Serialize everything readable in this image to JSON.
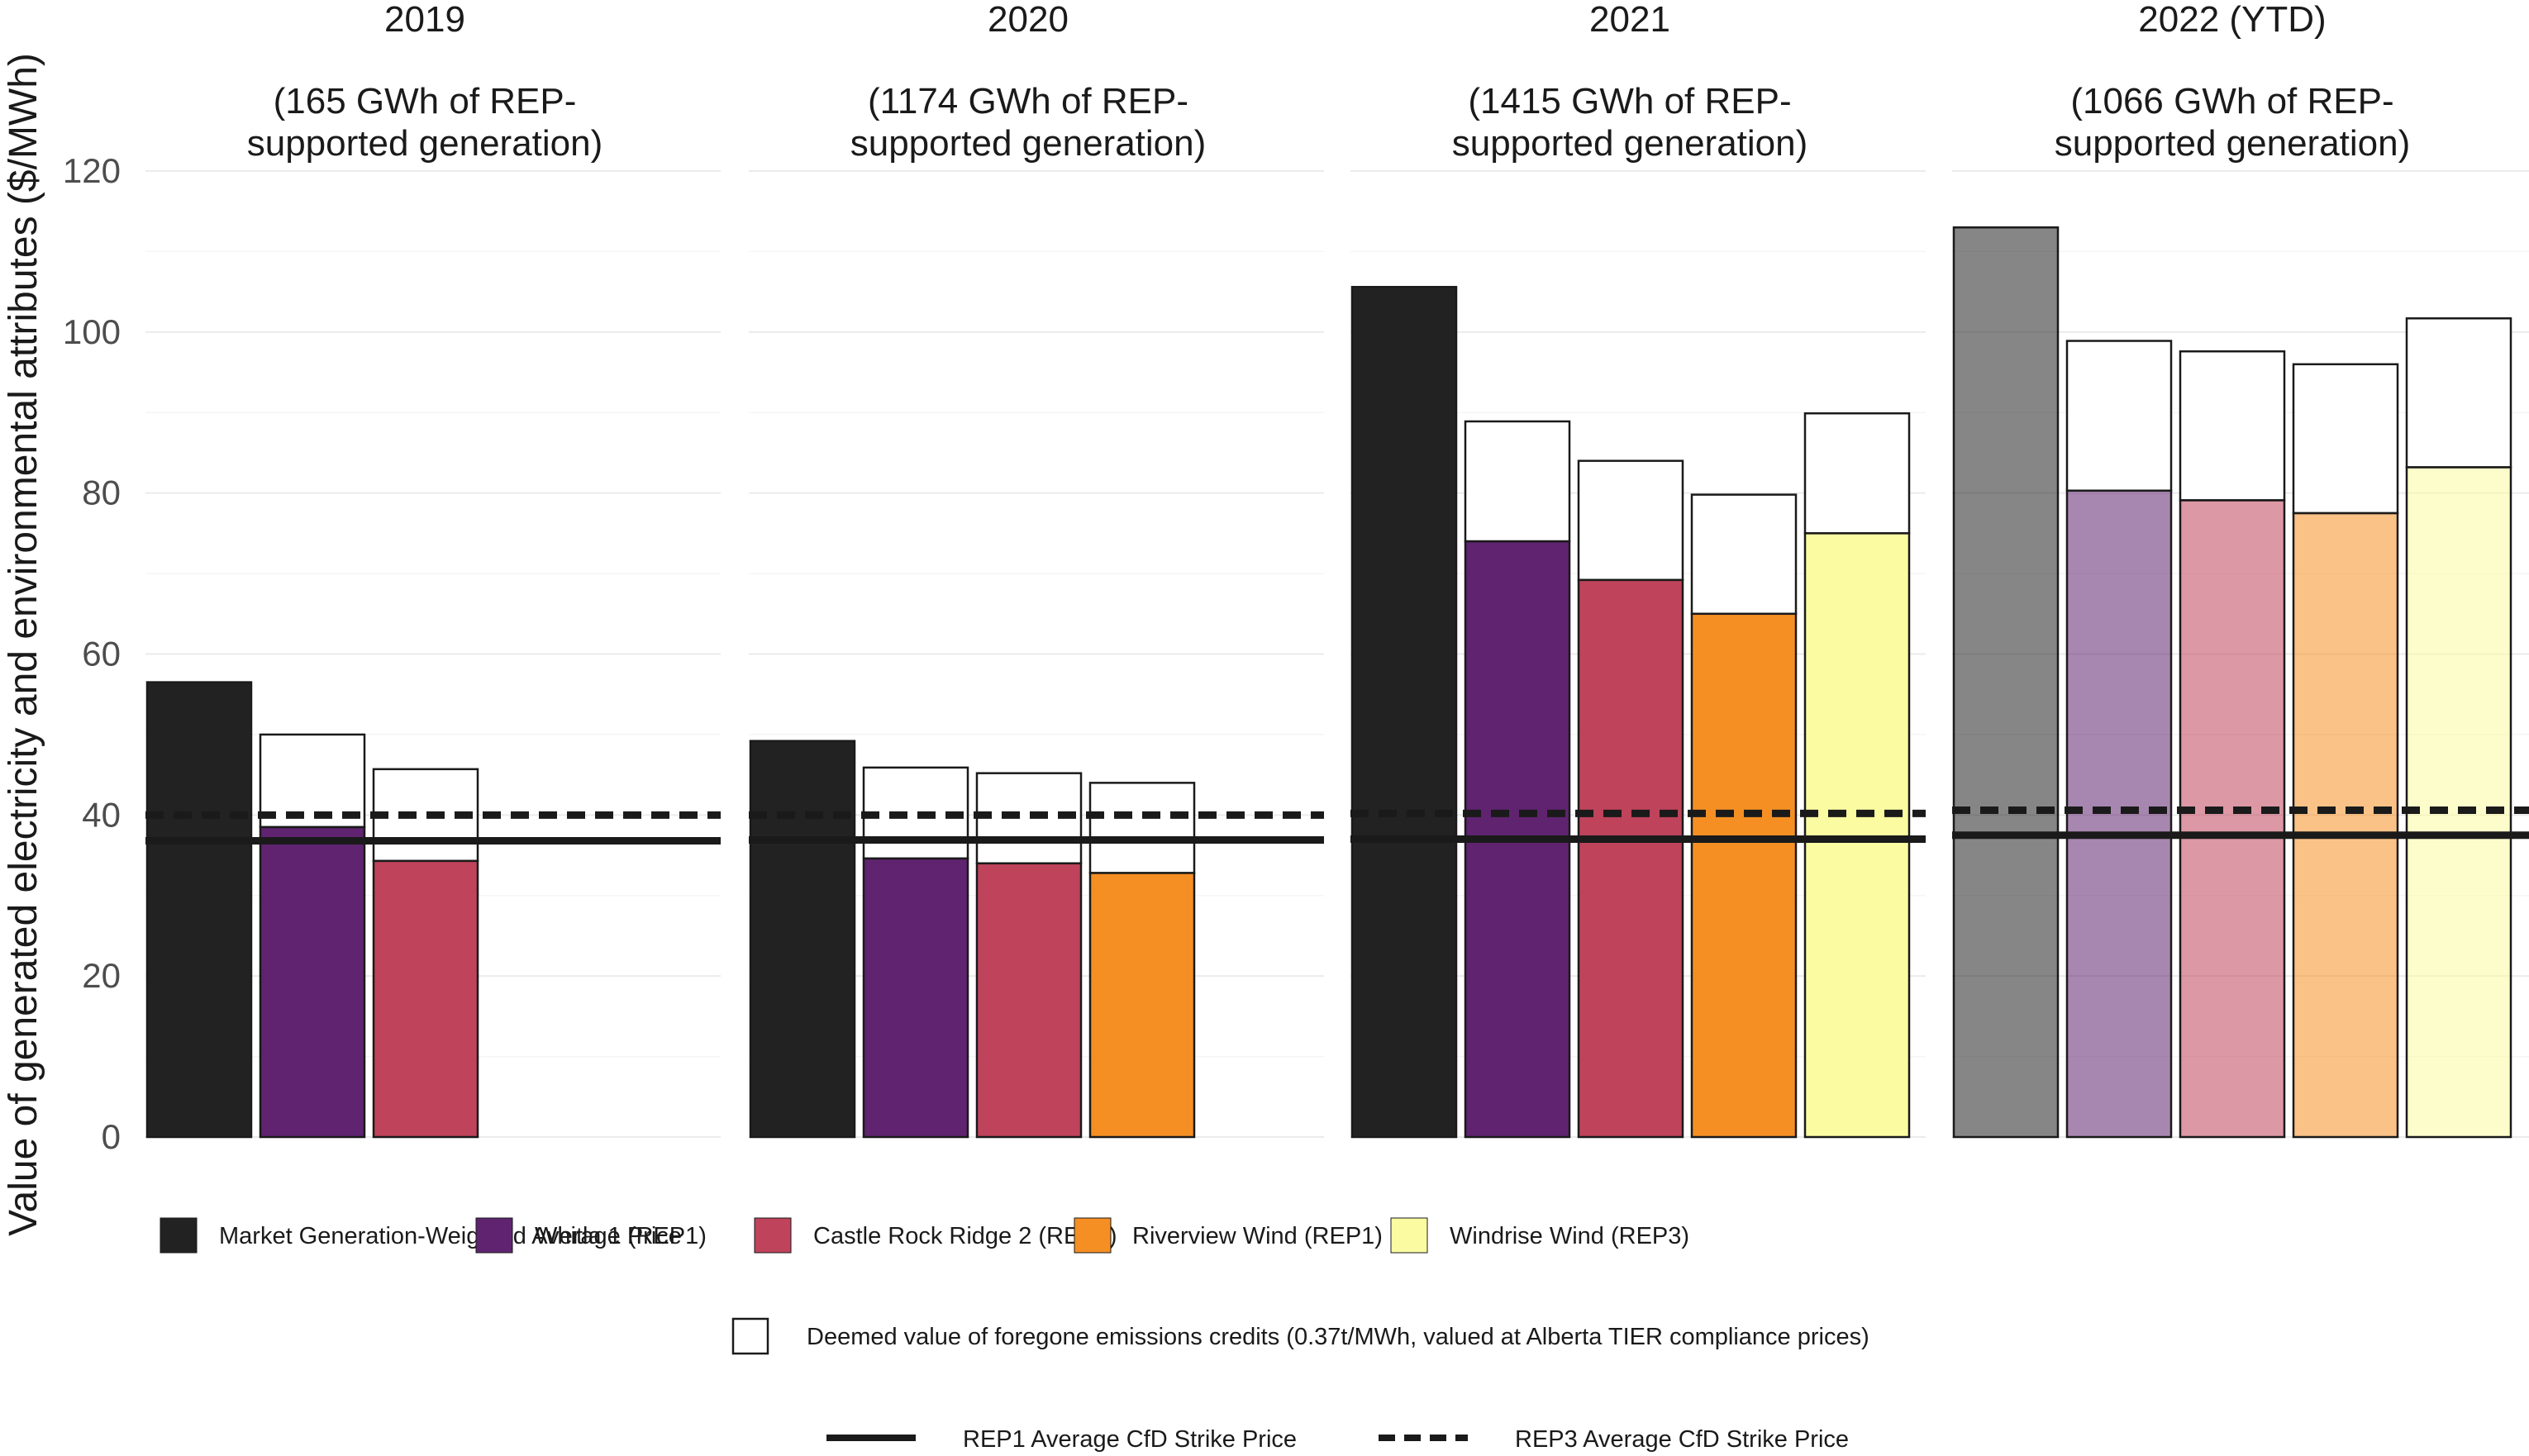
{
  "chart_data": {
    "type": "bar",
    "ylabel": "Value of generated electricity and environmental attributes ($/MWh)",
    "ylim": [
      0,
      120
    ],
    "yticks": [
      "0",
      "20",
      "40",
      "60",
      "80",
      "100",
      "120"
    ],
    "grid": true,
    "legend_position": "bottom",
    "series": [
      {
        "name": "Market Generation-Weighted Average Price",
        "color": "#222222"
      },
      {
        "name": "Whitla 1 (REP1)",
        "color": "#5f2370"
      },
      {
        "name": "Castle Rock Ridge 2 (REP1)",
        "color": "#bf435b"
      },
      {
        "name": "Riverview Wind (REP1)",
        "color": "#f58f24"
      },
      {
        "name": "Windrise Wind (REP3)",
        "color": "#fbfca2"
      }
    ],
    "credits_label": "Deemed value of foregone emissions credits (0.37t/MWh, valued at Alberta TIER compliance prices)",
    "line_legend": [
      {
        "name": "REP1 Average CfD Strike Price",
        "style": "solid"
      },
      {
        "name": "REP3 Average CfD Strike Price",
        "style": "dashed"
      }
    ],
    "panels": [
      {
        "year": "2019",
        "subtitle_line1": "(165 GWh of REP-",
        "subtitle_line2": "supported generation)",
        "faded": false,
        "rep1_strike": 36.8,
        "rep3_strike": 40.0,
        "bars": [
          {
            "series": "Market Generation-Weighted Average Price",
            "value": 56.5,
            "credits": 0
          },
          {
            "series": "Whitla 1 (REP1)",
            "value": 38.5,
            "credits": 11.5
          },
          {
            "series": "Castle Rock Ridge 2 (REP1)",
            "value": 34.3,
            "credits": 11.4
          }
        ]
      },
      {
        "year": "2020",
        "subtitle_line1": "(1174 GWh of REP-",
        "subtitle_line2": "supported generation)",
        "faded": false,
        "rep1_strike": 36.9,
        "rep3_strike": 40.0,
        "bars": [
          {
            "series": "Market Generation-Weighted Average Price",
            "value": 49.2,
            "credits": 0
          },
          {
            "series": "Whitla 1 (REP1)",
            "value": 34.6,
            "credits": 11.3
          },
          {
            "series": "Castle Rock Ridge 2 (REP1)",
            "value": 34.0,
            "credits": 11.2
          },
          {
            "series": "Riverview Wind (REP1)",
            "value": 32.8,
            "credits": 11.2
          }
        ]
      },
      {
        "year": "2021",
        "subtitle_line1": "(1415 GWh of REP-",
        "subtitle_line2": "supported generation)",
        "faded": false,
        "rep1_strike": 37.0,
        "rep3_strike": 40.2,
        "bars": [
          {
            "series": "Market Generation-Weighted Average Price",
            "value": 105.6,
            "credits": 0
          },
          {
            "series": "Whitla 1 (REP1)",
            "value": 74.0,
            "credits": 14.9
          },
          {
            "series": "Castle Rock Ridge 2 (REP1)",
            "value": 69.2,
            "credits": 14.8
          },
          {
            "series": "Riverview Wind (REP1)",
            "value": 65.0,
            "credits": 14.8
          },
          {
            "series": "Windrise Wind (REP3)",
            "value": 75.0,
            "credits": 14.9
          }
        ]
      },
      {
        "year": "2022 (YTD)",
        "subtitle_line1": "(1066 GWh of REP-",
        "subtitle_line2": "supported generation)",
        "faded": true,
        "rep1_strike": 37.5,
        "rep3_strike": 40.6,
        "bars": [
          {
            "series": "Market Generation-Weighted Average Price",
            "value": 113.0,
            "credits": 0
          },
          {
            "series": "Whitla 1 (REP1)",
            "value": 80.3,
            "credits": 18.6
          },
          {
            "series": "Castle Rock Ridge 2 (REP1)",
            "value": 79.1,
            "credits": 18.5
          },
          {
            "series": "Riverview Wind (REP1)",
            "value": 77.5,
            "credits": 18.5
          },
          {
            "series": "Windrise Wind (REP3)",
            "value": 83.2,
            "credits": 18.5
          }
        ]
      }
    ]
  }
}
